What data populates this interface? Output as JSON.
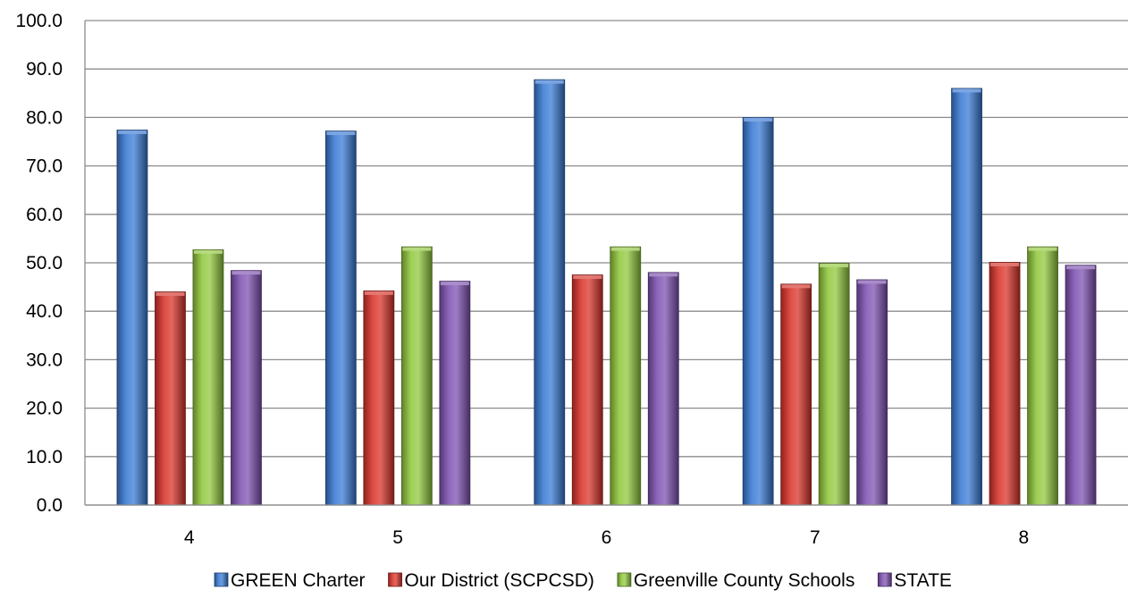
{
  "chart_data": {
    "type": "bar",
    "title": "",
    "xlabel": "",
    "ylabel": "",
    "categories": [
      "4",
      "5",
      "6",
      "7",
      "8"
    ],
    "ylim": [
      0,
      100
    ],
    "yticks": [
      "0.0",
      "10.0",
      "20.0",
      "30.0",
      "40.0",
      "50.0",
      "60.0",
      "70.0",
      "80.0",
      "90.0",
      "100.0"
    ],
    "grid": true,
    "legend_position": "bottom",
    "series": [
      {
        "name": "GREEN Charter",
        "color": "#3A7BD5",
        "values": [
          77.4,
          77.2,
          87.8,
          80.0,
          86.0
        ]
      },
      {
        "name": "Our District (SCPCSD)",
        "color": "#D9342B",
        "values": [
          44.0,
          44.2,
          47.5,
          45.6,
          50.1
        ]
      },
      {
        "name": "Greenville County Schools",
        "color": "#92C83E",
        "values": [
          52.7,
          53.3,
          53.3,
          49.9,
          53.3
        ]
      },
      {
        "name": "STATE",
        "color": "#7F52B2",
        "values": [
          48.4,
          46.2,
          48.0,
          46.5,
          49.5
        ]
      }
    ]
  }
}
